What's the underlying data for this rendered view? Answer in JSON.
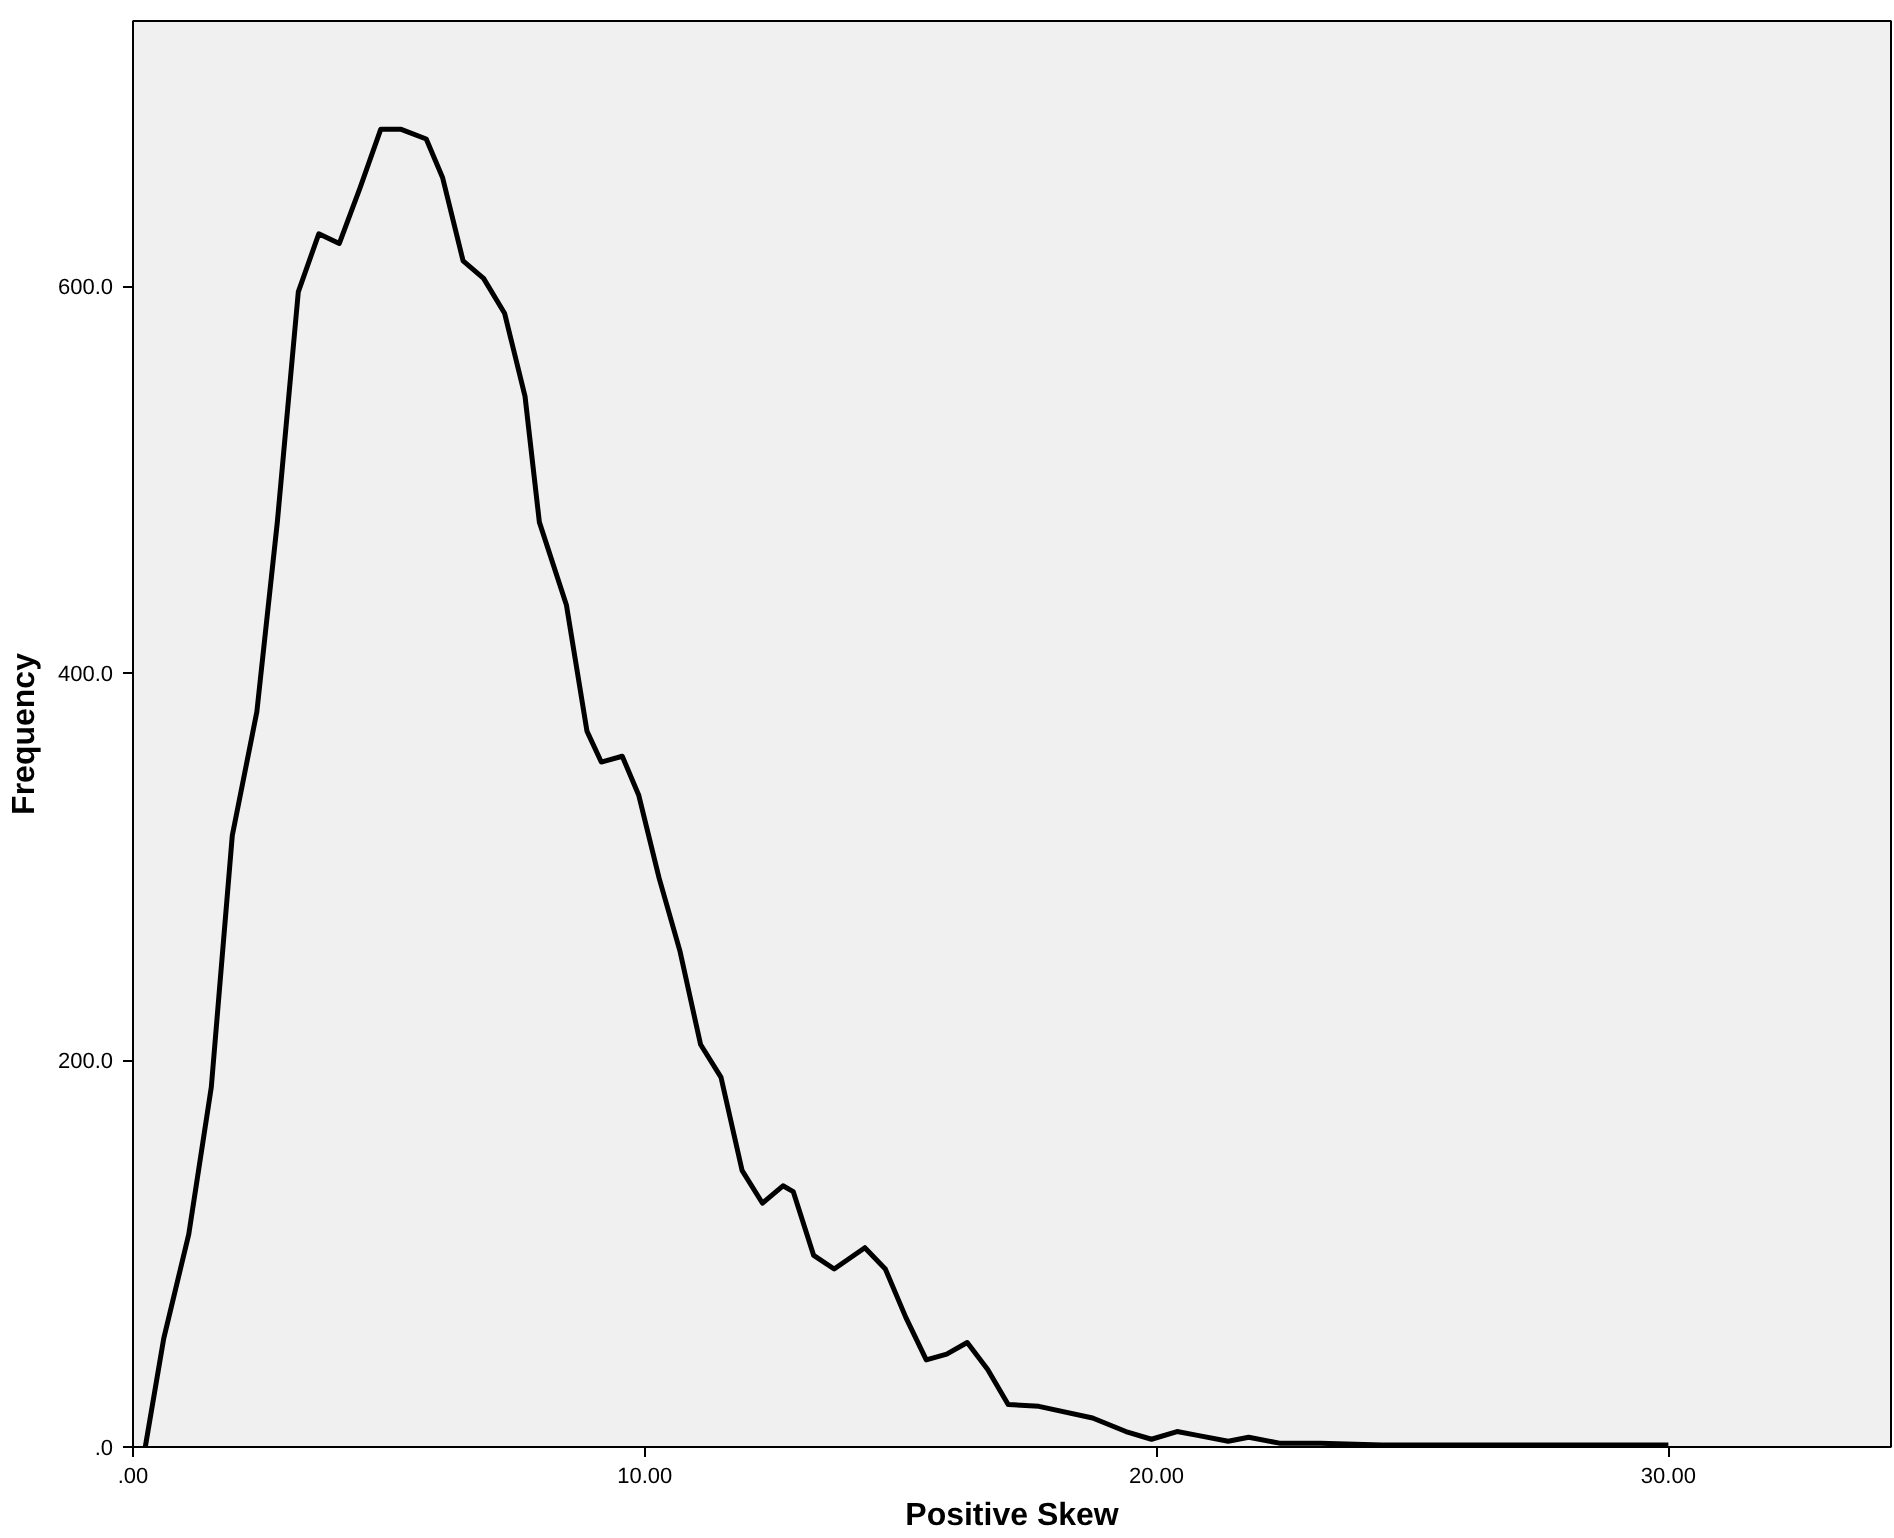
{
  "chart_data": {
    "type": "line",
    "xlabel": "Positive Skew",
    "ylabel": "Frequency",
    "x": [
      0.24,
      0.6,
      1.09,
      1.53,
      1.94,
      2.42,
      2.82,
      3.23,
      3.63,
      4.03,
      4.44,
      4.84,
      5.24,
      5.73,
      6.05,
      6.45,
      6.85,
      7.26,
      7.66,
      7.94,
      8.47,
      8.87,
      9.15,
      9.56,
      9.88,
      10.28,
      10.69,
      11.09,
      11.49,
      11.9,
      12.3,
      12.7,
      12.9,
      13.3,
      13.7,
      14.3,
      14.7,
      15.1,
      15.5,
      15.9,
      16.3,
      16.7,
      17.1,
      17.7,
      18.75,
      19.4,
      19.9,
      20.4,
      20.8,
      21.4,
      21.8,
      22.4,
      23.2,
      24.4,
      26.8,
      30.0
    ],
    "series": [
      {
        "color": "#000000",
        "values": [
          0,
          56,
          110,
          186,
          316,
          380,
          478,
          597,
          627,
          622,
          651,
          681,
          681,
          676,
          656,
          613,
          604,
          586,
          543,
          478,
          435,
          370,
          354,
          357,
          337,
          294,
          256,
          208,
          191,
          143,
          126,
          135,
          132,
          99,
          92,
          103,
          92,
          67,
          45,
          48,
          54,
          40,
          22,
          21,
          15,
          8,
          4,
          8,
          6,
          3,
          5,
          2,
          2,
          1,
          1,
          1
        ]
      }
    ],
    "xlim": [
      0,
      34.35
    ],
    "ylim": [
      0,
      737
    ],
    "xticks": [
      {
        "value": 0,
        "label": ".00"
      },
      {
        "value": 10,
        "label": "10.00"
      },
      {
        "value": 20,
        "label": "20.00"
      },
      {
        "value": 30,
        "label": "30.00"
      }
    ],
    "yticks": [
      {
        "value": 0,
        "label": ".0"
      },
      {
        "value": 200,
        "label": "200.0"
      },
      {
        "value": 400,
        "label": "400.0"
      },
      {
        "value": 600,
        "label": "600.0"
      }
    ],
    "grid": false,
    "marker": "none",
    "line_style": "solid"
  }
}
